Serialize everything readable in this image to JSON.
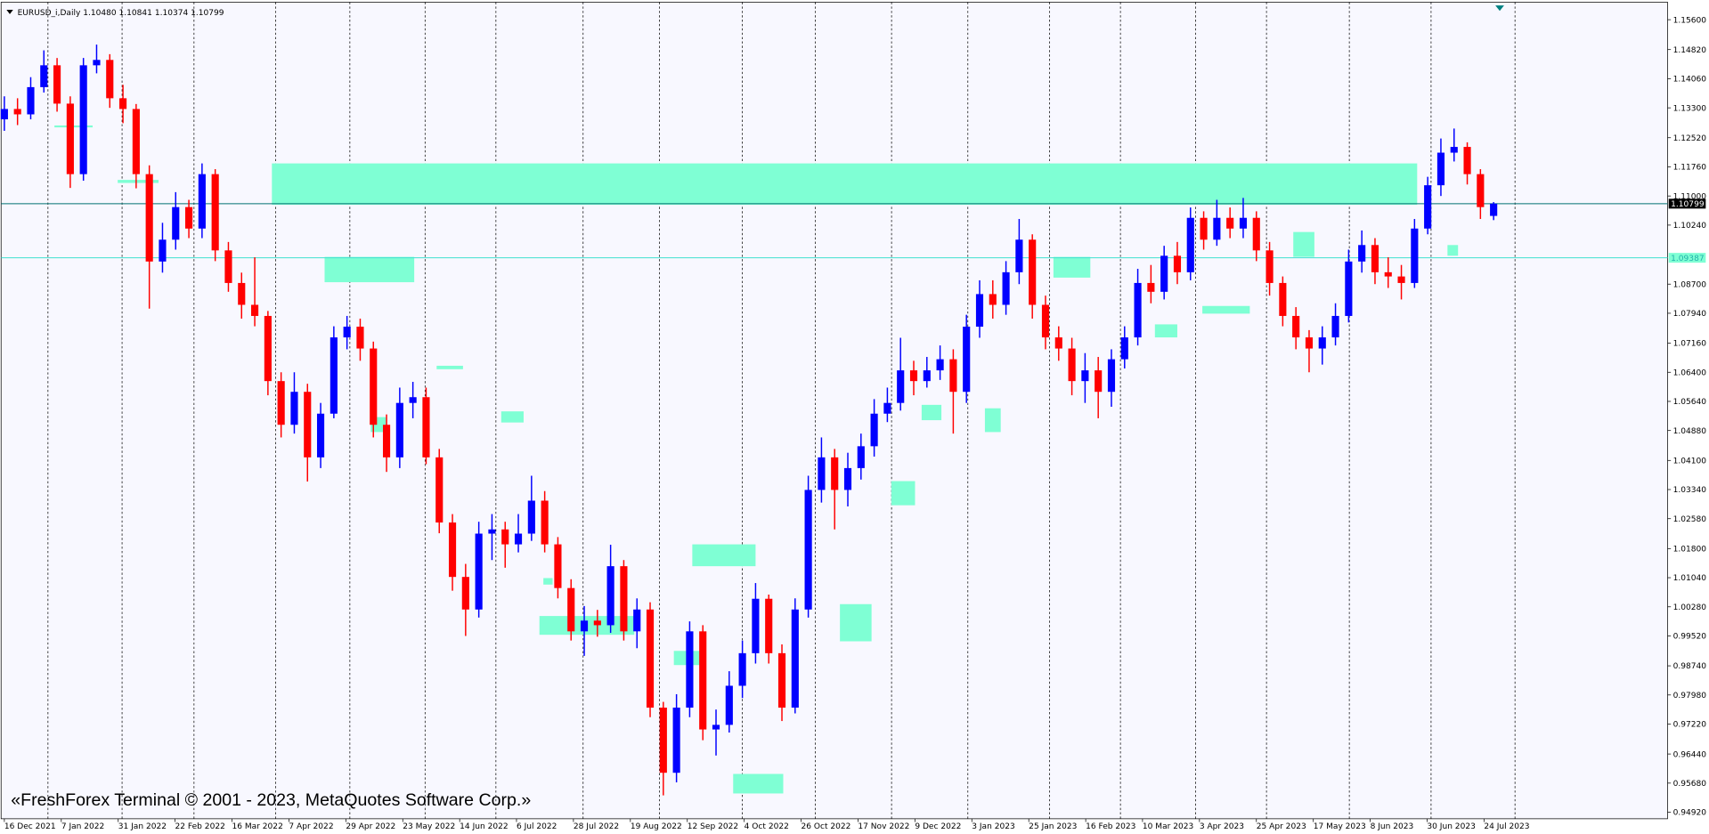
{
  "chart_data": {
    "type": "candlestick",
    "title": "EURUSD_i,Daily  1.10480 1.10841 1.10374 1.10799",
    "watermark": "«FreshForex Terminal © 2001 - 2023, MetaQuotes Software Corp.»",
    "up_color": "#0000ff",
    "down_color": "#ff0000",
    "zone_color": "#7fffd4",
    "xlim": [
      -0.33,
      126.2
    ],
    "ylim": [
      0.9475,
      1.16
    ],
    "yticks": [
      {
        "value": 1.156,
        "label": "1.15600"
      },
      {
        "value": 1.1482,
        "label": "1.14820"
      },
      {
        "value": 1.1406,
        "label": "1.14060"
      },
      {
        "value": 1.133,
        "label": "1.13300"
      },
      {
        "value": 1.1252,
        "label": "1.12520"
      },
      {
        "value": 1.1176,
        "label": "1.11760"
      },
      {
        "value": 1.11,
        "label": "1.11000"
      },
      {
        "value": 1.1024,
        "label": "1.10240"
      },
      {
        "value": 1.087,
        "label": "1.08700"
      },
      {
        "value": 1.0794,
        "label": "1.07940"
      },
      {
        "value": 1.0716,
        "label": "1.07160"
      },
      {
        "value": 1.064,
        "label": "1.06400"
      },
      {
        "value": 1.0564,
        "label": "1.05640"
      },
      {
        "value": 1.0488,
        "label": "1.04880"
      },
      {
        "value": 1.041,
        "label": "1.04100"
      },
      {
        "value": 1.0334,
        "label": "1.03340"
      },
      {
        "value": 1.0258,
        "label": "1.02580"
      },
      {
        "value": 1.018,
        "label": "1.01800"
      },
      {
        "value": 1.0104,
        "label": "1.01040"
      },
      {
        "value": 1.0028,
        "label": "1.00280"
      },
      {
        "value": 0.9952,
        "label": "0.99520"
      },
      {
        "value": 0.9874,
        "label": "0.98740"
      },
      {
        "value": 0.9798,
        "label": "0.97980"
      },
      {
        "value": 0.9722,
        "label": "0.97220"
      },
      {
        "value": 0.9644,
        "label": "0.96440"
      },
      {
        "value": 0.9568,
        "label": "0.95680"
      },
      {
        "value": 0.9492,
        "label": "0.94920"
      }
    ],
    "xticks": [
      {
        "value": 0,
        "label": "16 Dec 2021"
      },
      {
        "value": 4.32,
        "label": "7 Jan 2022"
      },
      {
        "value": 8.64,
        "label": "31 Jan 2022"
      },
      {
        "value": 12.95,
        "label": "22 Feb 2022"
      },
      {
        "value": 17.27,
        "label": "16 Mar 2022"
      },
      {
        "value": 21.59,
        "label": "7 Apr 2022"
      },
      {
        "value": 25.91,
        "label": "29 Apr 2022"
      },
      {
        "value": 30.23,
        "label": "23 May 2022"
      },
      {
        "value": 34.55,
        "label": "14 Jun 2022"
      },
      {
        "value": 38.86,
        "label": "6 Jul 2022"
      },
      {
        "value": 43.18,
        "label": "28 Jul 2022"
      },
      {
        "value": 47.5,
        "label": "19 Aug 2022"
      },
      {
        "value": 51.82,
        "label": "12 Sep 2022"
      },
      {
        "value": 56.14,
        "label": "4 Oct 2022"
      },
      {
        "value": 60.45,
        "label": "26 Oct 2022"
      },
      {
        "value": 64.77,
        "label": "17 Nov 2022"
      },
      {
        "value": 69.09,
        "label": "9 Dec 2022"
      },
      {
        "value": 73.41,
        "label": "3 Jan 2023"
      },
      {
        "value": 77.73,
        "label": "25 Jan 2023"
      },
      {
        "value": 82.05,
        "label": "16 Feb 2023"
      },
      {
        "value": 86.36,
        "label": "10 Mar 2023"
      },
      {
        "value": 90.68,
        "label": "3 Apr 2023"
      },
      {
        "value": 95.0,
        "label": "25 Apr 2023"
      },
      {
        "value": 99.32,
        "label": "17 May 2023"
      },
      {
        "value": 103.64,
        "label": "8 Jun 2023"
      },
      {
        "value": 107.95,
        "label": "30 Jun 2023"
      },
      {
        "value": 112.27,
        "label": "24 Jul 2023"
      }
    ],
    "price_lines": [
      {
        "value": 1.10799,
        "color": "#007070",
        "label_bg": "#000000",
        "label_color": "#ffffff"
      },
      {
        "value": 1.09387,
        "color": "#40e0d0",
        "label_bg": "#7fffd4",
        "label_color": "#20b2aa"
      }
    ],
    "zones": [
      {
        "x": [
          20.3,
          107.2
        ],
        "y": [
          1.1077,
          1.1185
        ]
      },
      {
        "x": [
          24.3,
          31.1
        ],
        "y": [
          1.0875,
          1.0941
        ]
      },
      {
        "x": [
          3.8,
          6.7
        ],
        "y": [
          1.1279,
          1.1284
        ]
      },
      {
        "x": [
          8.6,
          11.7
        ],
        "y": [
          1.1134,
          1.1142
        ]
      },
      {
        "x": [
          79.6,
          82.4
        ],
        "y": [
          1.0887,
          1.0941
        ]
      },
      {
        "x": [
          97.8,
          99.4
        ],
        "y": [
          1.0941,
          1.1006
        ]
      },
      {
        "x": [
          90.9,
          94.5
        ],
        "y": [
          1.0793,
          1.0813
        ]
      },
      {
        "x": [
          87.3,
          89.0
        ],
        "y": [
          1.0731,
          1.0765
        ]
      },
      {
        "x": [
          69.6,
          71.1
        ],
        "y": [
          1.0515,
          1.0555
        ]
      },
      {
        "x": [
          74.4,
          75.6
        ],
        "y": [
          1.0484,
          1.0546
        ]
      },
      {
        "x": [
          67.3,
          69.1
        ],
        "y": [
          1.0293,
          1.0356
        ]
      },
      {
        "x": [
          63.4,
          65.8
        ],
        "y": [
          0.9938,
          1.0035
        ]
      },
      {
        "x": [
          52.2,
          57.0
        ],
        "y": [
          1.0134,
          1.0191
        ]
      },
      {
        "x": [
          40.6,
          47.8
        ],
        "y": [
          0.9955,
          1.0004
        ]
      },
      {
        "x": [
          50.8,
          53.0
        ],
        "y": [
          0.9876,
          0.9913
        ]
      },
      {
        "x": [
          55.3,
          59.1
        ],
        "y": [
          0.9541,
          0.9592
        ]
      },
      {
        "x": [
          37.7,
          39.4
        ],
        "y": [
          1.0509,
          1.0538
        ]
      },
      {
        "x": [
          27.8,
          29.0
        ],
        "y": [
          1.0484,
          1.0523
        ]
      },
      {
        "x": [
          32.8,
          34.8
        ],
        "y": [
          1.0648,
          1.0657
        ]
      },
      {
        "x": [
          40.9,
          41.6
        ],
        "y": [
          1.0086,
          1.0103
        ]
      },
      {
        "x": [
          109.5,
          110.3
        ],
        "y": [
          1.0944,
          1.0972
        ]
      }
    ],
    "ohlc": [
      [
        1.13,
        1.136,
        1.127,
        1.1327
      ],
      [
        1.1327,
        1.1355,
        1.1285,
        1.1313
      ],
      [
        1.1313,
        1.141,
        1.13,
        1.1384
      ],
      [
        1.1384,
        1.148,
        1.137,
        1.1441
      ],
      [
        1.1441,
        1.146,
        1.132,
        1.1341
      ],
      [
        1.1341,
        1.136,
        1.1121,
        1.1157
      ],
      [
        1.1157,
        1.146,
        1.114,
        1.1441
      ],
      [
        1.1441,
        1.1495,
        1.142,
        1.1455
      ],
      [
        1.1455,
        1.147,
        1.133,
        1.1355
      ],
      [
        1.1355,
        1.139,
        1.129,
        1.1327
      ],
      [
        1.1327,
        1.134,
        1.112,
        1.1157
      ],
      [
        1.1157,
        1.118,
        1.0806,
        1.0929
      ],
      [
        1.0929,
        1.103,
        1.09,
        1.0986
      ],
      [
        1.0986,
        1.111,
        1.096,
        1.1071
      ],
      [
        1.1071,
        1.109,
        1.099,
        1.1015
      ],
      [
        1.1015,
        1.1185,
        1.099,
        1.1157
      ],
      [
        1.1157,
        1.117,
        1.093,
        1.0958
      ],
      [
        1.0958,
        1.098,
        1.085,
        1.0873
      ],
      [
        1.0873,
        1.09,
        1.078,
        1.0816
      ],
      [
        1.0816,
        1.094,
        1.076,
        1.0787
      ],
      [
        1.0787,
        1.08,
        1.058,
        1.0617
      ],
      [
        1.0617,
        1.064,
        1.047,
        1.0503
      ],
      [
        1.0503,
        1.064,
        1.048,
        1.0589
      ],
      [
        1.0589,
        1.061,
        1.0355,
        1.0418
      ],
      [
        1.0418,
        1.056,
        1.039,
        1.0532
      ],
      [
        1.0532,
        1.076,
        1.052,
        1.0731
      ],
      [
        1.0731,
        1.0787,
        1.07,
        1.0759
      ],
      [
        1.0759,
        1.078,
        1.067,
        1.0702
      ],
      [
        1.0702,
        1.072,
        1.047,
        1.0503
      ],
      [
        1.0503,
        1.053,
        1.038,
        1.0418
      ],
      [
        1.0418,
        1.06,
        1.039,
        1.056
      ],
      [
        1.056,
        1.0615,
        1.052,
        1.0575
      ],
      [
        1.0575,
        1.06,
        1.04,
        1.0418
      ],
      [
        1.0418,
        1.044,
        1.022,
        1.0248
      ],
      [
        1.0248,
        1.027,
        1.007,
        1.0106
      ],
      [
        1.0106,
        1.014,
        0.9952,
        1.0021
      ],
      [
        1.0021,
        1.025,
        1.0,
        1.0219
      ],
      [
        1.0219,
        1.027,
        1.015,
        1.023
      ],
      [
        1.023,
        1.025,
        1.013,
        1.0191
      ],
      [
        1.0191,
        1.027,
        1.017,
        1.0219
      ],
      [
        1.0219,
        1.037,
        1.02,
        1.0305
      ],
      [
        1.0305,
        1.033,
        1.017,
        1.0191
      ],
      [
        1.0191,
        1.021,
        1.005,
        1.0077
      ],
      [
        1.0077,
        1.01,
        0.994,
        0.9964
      ],
      [
        0.9964,
        1.003,
        0.99,
        0.9992
      ],
      [
        0.9992,
        1.002,
        0.995,
        0.998
      ],
      [
        0.998,
        1.019,
        0.996,
        1.0134
      ],
      [
        1.0134,
        1.015,
        0.994,
        0.9964
      ],
      [
        0.9964,
        1.005,
        0.992,
        1.0021
      ],
      [
        1.0021,
        1.004,
        0.974,
        0.9765
      ],
      [
        0.9765,
        0.978,
        0.9536,
        0.9595
      ],
      [
        0.9595,
        0.98,
        0.957,
        0.9765
      ],
      [
        0.9765,
        0.999,
        0.974,
        0.9964
      ],
      [
        0.9964,
        0.998,
        0.968,
        0.9708
      ],
      [
        0.9708,
        0.976,
        0.964,
        0.972
      ],
      [
        0.972,
        0.986,
        0.97,
        0.9822
      ],
      [
        0.9822,
        0.994,
        0.979,
        0.9907
      ],
      [
        0.9907,
        1.009,
        0.988,
        1.0049
      ],
      [
        1.0049,
        1.006,
        0.988,
        0.9907
      ],
      [
        0.9907,
        0.993,
        0.973,
        0.9765
      ],
      [
        0.9765,
        1.005,
        0.975,
        1.0021
      ],
      [
        1.0021,
        1.037,
        1.0,
        1.0333
      ],
      [
        1.0333,
        1.047,
        1.03,
        1.0418
      ],
      [
        1.0418,
        1.044,
        1.023,
        1.0333
      ],
      [
        1.0333,
        1.043,
        1.029,
        1.039
      ],
      [
        1.039,
        1.048,
        1.036,
        1.0447
      ],
      [
        1.0447,
        1.057,
        1.042,
        1.0532
      ],
      [
        1.0532,
        1.06,
        1.051,
        1.056
      ],
      [
        1.056,
        1.073,
        1.054,
        1.0645
      ],
      [
        1.0645,
        1.067,
        1.058,
        1.0617
      ],
      [
        1.0617,
        1.068,
        1.06,
        1.0645
      ],
      [
        1.0645,
        1.071,
        1.062,
        1.0674
      ],
      [
        1.0674,
        1.07,
        1.048,
        1.0589
      ],
      [
        1.0589,
        1.079,
        1.056,
        1.0759
      ],
      [
        1.0759,
        1.088,
        1.073,
        1.0844
      ],
      [
        1.0844,
        1.088,
        1.078,
        1.0816
      ],
      [
        1.0816,
        1.093,
        1.079,
        1.0901
      ],
      [
        1.0901,
        1.104,
        1.087,
        1.0986
      ],
      [
        1.0986,
        1.1,
        1.078,
        1.0816
      ],
      [
        1.0816,
        1.084,
        1.07,
        1.0731
      ],
      [
        1.0731,
        1.076,
        1.067,
        1.0702
      ],
      [
        1.0702,
        1.073,
        1.058,
        1.0617
      ],
      [
        1.0617,
        1.069,
        1.056,
        1.0645
      ],
      [
        1.0645,
        1.068,
        1.052,
        1.0589
      ],
      [
        1.0589,
        1.07,
        1.055,
        1.0674
      ],
      [
        1.0674,
        1.076,
        1.065,
        1.0731
      ],
      [
        1.0731,
        1.091,
        1.071,
        1.0873
      ],
      [
        1.0873,
        1.092,
        1.082,
        1.085
      ],
      [
        1.085,
        1.097,
        1.083,
        1.0944
      ],
      [
        1.0944,
        1.098,
        1.087,
        1.0901
      ],
      [
        1.0901,
        1.107,
        1.088,
        1.1043
      ],
      [
        1.1043,
        1.106,
        1.096,
        1.0986
      ],
      [
        1.0986,
        1.109,
        1.097,
        1.1043
      ],
      [
        1.1043,
        1.107,
        1.099,
        1.1015
      ],
      [
        1.1015,
        1.1095,
        1.099,
        1.1043
      ],
      [
        1.1043,
        1.106,
        1.093,
        1.0958
      ],
      [
        1.0958,
        1.098,
        1.084,
        1.0873
      ],
      [
        1.0873,
        1.089,
        1.076,
        1.0787
      ],
      [
        1.0787,
        1.081,
        1.07,
        1.0731
      ],
      [
        1.0731,
        1.075,
        1.064,
        1.0702
      ],
      [
        1.0702,
        1.076,
        1.066,
        1.0731
      ],
      [
        1.0731,
        1.082,
        1.071,
        1.0787
      ],
      [
        1.0787,
        1.096,
        1.077,
        1.0929
      ],
      [
        1.0929,
        1.101,
        1.09,
        1.0972
      ],
      [
        1.0972,
        1.099,
        1.087,
        1.0901
      ],
      [
        1.0901,
        1.094,
        1.086,
        1.089
      ],
      [
        1.089,
        1.092,
        1.083,
        1.0873
      ],
      [
        1.0873,
        1.104,
        1.086,
        1.1015
      ],
      [
        1.1015,
        1.115,
        1.1,
        1.1128
      ],
      [
        1.1128,
        1.125,
        1.11,
        1.1213
      ],
      [
        1.1213,
        1.1276,
        1.119,
        1.1228
      ],
      [
        1.1228,
        1.124,
        1.113,
        1.1157
      ],
      [
        1.1157,
        1.117,
        1.104,
        1.1071
      ],
      [
        1.1048,
        1.1084,
        1.1037,
        1.108
      ]
    ]
  }
}
